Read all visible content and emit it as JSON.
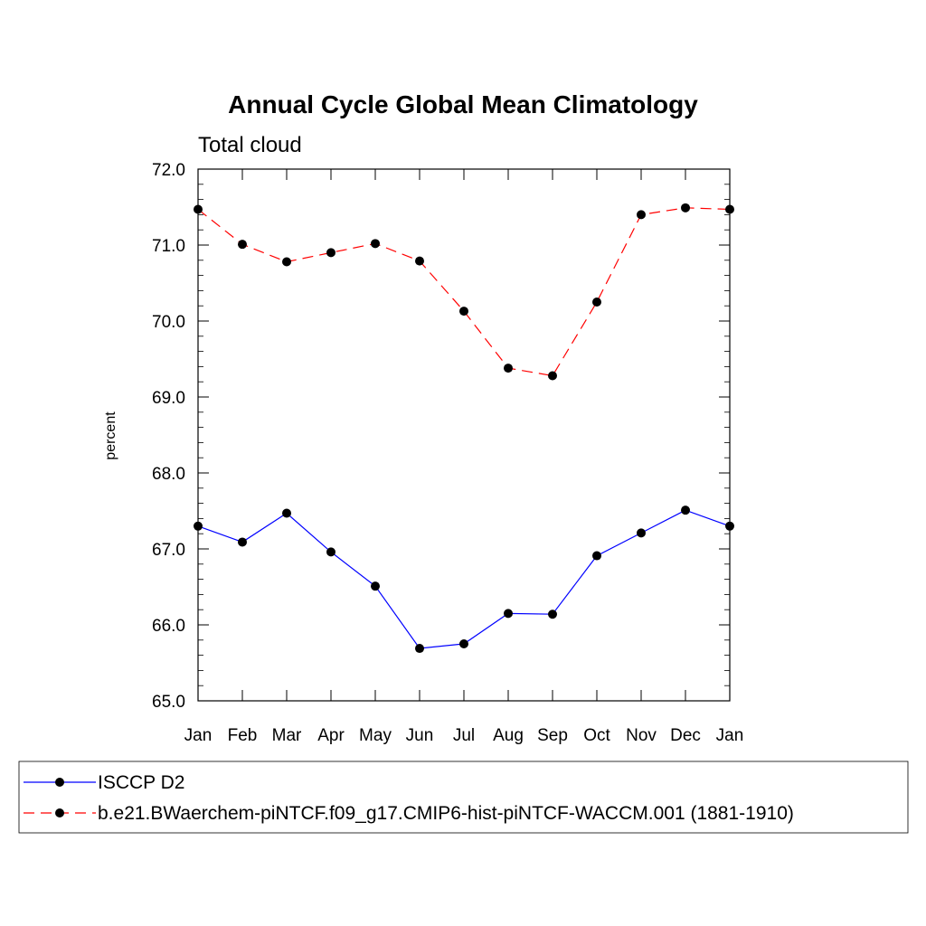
{
  "chart_data": {
    "type": "line",
    "title": "Annual Cycle Global Mean Climatology",
    "subtitle": "Total cloud",
    "xlabel": "",
    "ylabel": "percent",
    "categories": [
      "Jan",
      "Feb",
      "Mar",
      "Apr",
      "May",
      "Jun",
      "Jul",
      "Aug",
      "Sep",
      "Oct",
      "Nov",
      "Dec",
      "Jan"
    ],
    "ylim": [
      65.0,
      72.0
    ],
    "yticks": [
      "65.0",
      "66.0",
      "67.0",
      "68.0",
      "69.0",
      "70.0",
      "71.0",
      "72.0"
    ],
    "grid": false,
    "legend_position": "bottom",
    "series": [
      {
        "name": "ISCCP D2",
        "color": "#0000ff",
        "line_style": "solid",
        "marker": "filled-circle",
        "values": [
          67.3,
          67.09,
          67.47,
          66.96,
          66.51,
          65.69,
          65.75,
          66.15,
          66.14,
          66.91,
          67.21,
          67.51,
          67.3
        ]
      },
      {
        "name": "b.e21.BWaerchem-piNTCF.f09_g17.CMIP6-hist-piNTCF-WACCM.001 (1881-1910)",
        "color": "#ff0000",
        "line_style": "dashed",
        "marker": "filled-circle",
        "values": [
          71.47,
          71.01,
          70.78,
          70.9,
          71.02,
          70.79,
          70.13,
          69.38,
          69.28,
          70.25,
          71.4,
          71.49,
          71.47
        ]
      }
    ]
  }
}
